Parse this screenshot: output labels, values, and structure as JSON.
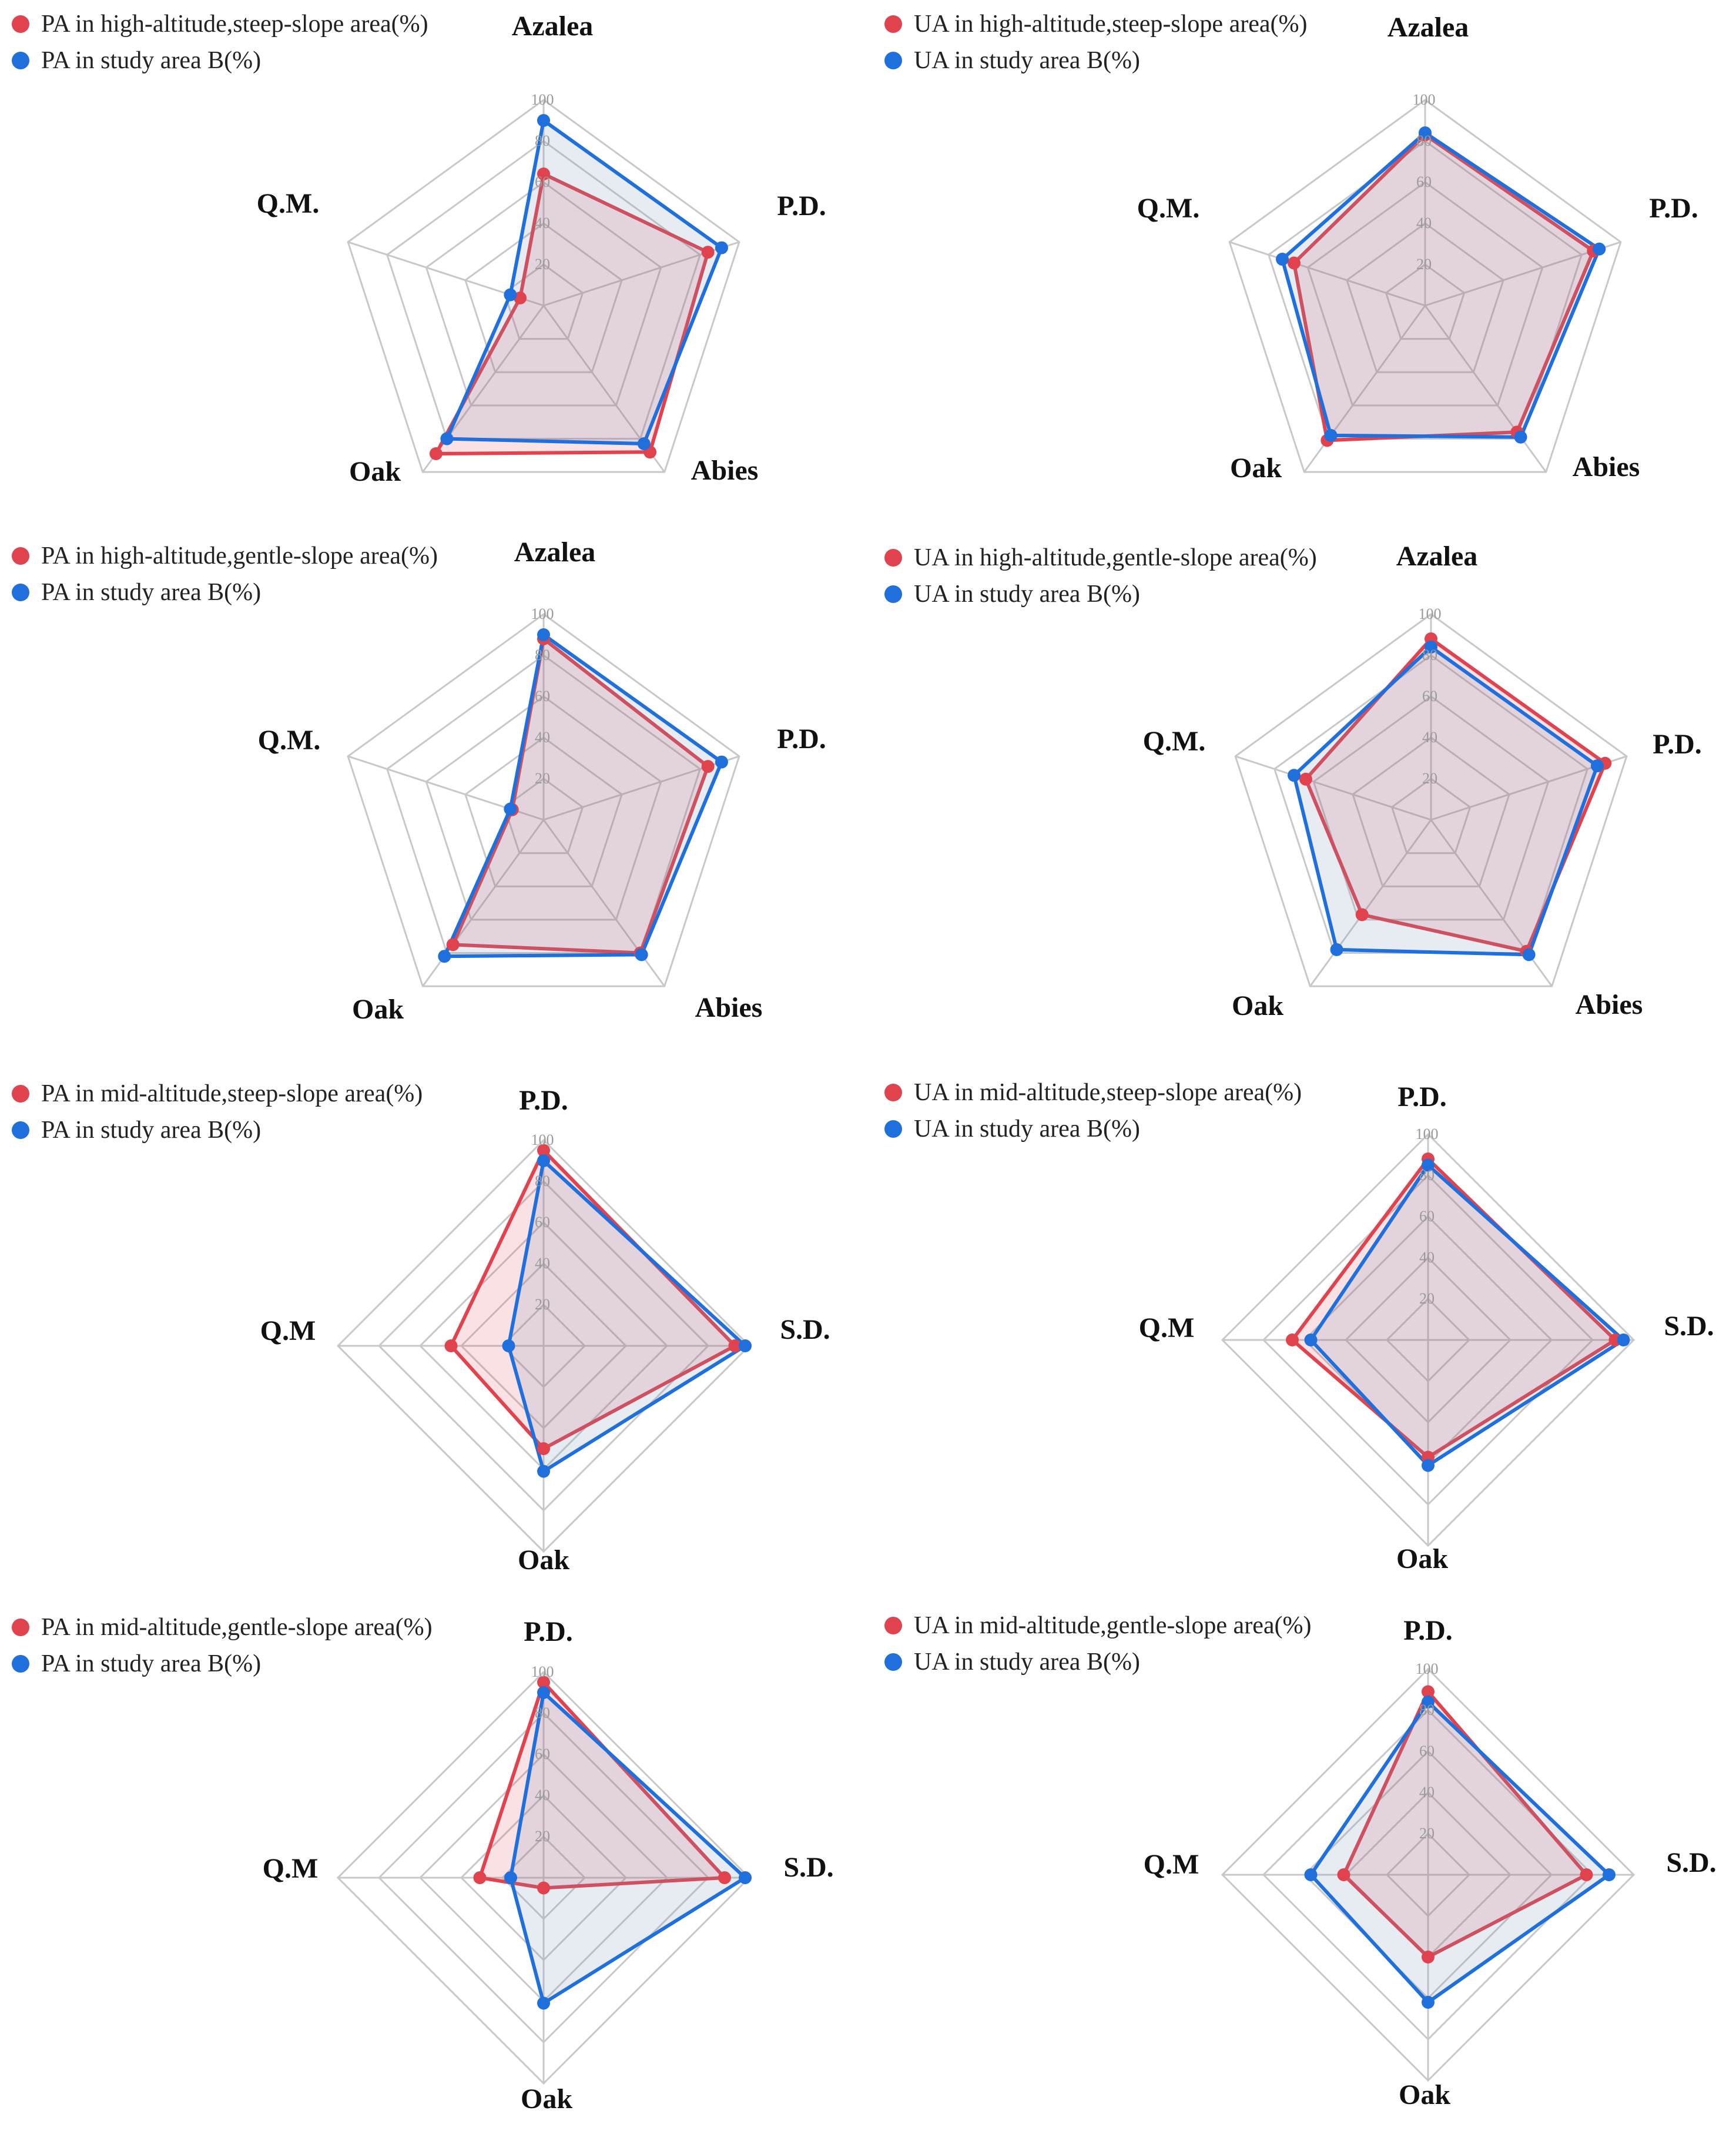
{
  "colors": {
    "red": "#e0434e",
    "blue": "#1f6fdc",
    "grid": "#c8c8c8",
    "tick": "#9a9a9a"
  },
  "chart_data": [
    {
      "type": "radar",
      "title": "",
      "rlim": [
        0,
        100
      ],
      "ticks": [
        "20",
        "40",
        "60",
        "80",
        "100"
      ],
      "axes": [
        "Azalea",
        "P.D.",
        "Abies",
        "Oak",
        "Q.M."
      ],
      "series": [
        {
          "name": "PA in high-altitude,steep-slope area(%)",
          "color": "red",
          "values": [
            64,
            84,
            88,
            89,
            12
          ]
        },
        {
          "name": "PA in study area B(%)",
          "color": "blue",
          "values": [
            90,
            91,
            83,
            80,
            17
          ]
        }
      ],
      "legend": "top-left"
    },
    {
      "type": "radar",
      "title": "",
      "rlim": [
        0,
        100
      ],
      "ticks": [
        "20",
        "40",
        "60",
        "80",
        "100"
      ],
      "axes": [
        "Azalea",
        "P.D.",
        "Abies",
        "Oak",
        "Q.M."
      ],
      "series": [
        {
          "name": "UA in high-altitude,steep-slope area(%)",
          "color": "red",
          "values": [
            83,
            86,
            76,
            81,
            67
          ]
        },
        {
          "name": "UA in study area B(%)",
          "color": "blue",
          "values": [
            84,
            89,
            79,
            78,
            73
          ]
        }
      ],
      "legend": "top-left"
    },
    {
      "type": "radar",
      "title": "",
      "rlim": [
        0,
        100
      ],
      "ticks": [
        "20",
        "40",
        "60",
        "80",
        "100"
      ],
      "axes": [
        "Azalea",
        "P.D.",
        "Abies",
        "Oak",
        "Q.M."
      ],
      "series": [
        {
          "name": "PA in high-altitude,gentle-slope area(%)",
          "color": "red",
          "values": [
            88,
            84,
            80,
            75,
            16
          ]
        },
        {
          "name": "PA in study area B(%)",
          "color": "blue",
          "values": [
            90,
            91,
            81,
            82,
            17
          ]
        }
      ],
      "legend": "top-left"
    },
    {
      "type": "radar",
      "title": "",
      "rlim": [
        0,
        100
      ],
      "ticks": [
        "20",
        "40",
        "60",
        "80",
        "100"
      ],
      "axes": [
        "Azalea",
        "P.D.",
        "Abies",
        "Oak",
        "Q.M."
      ],
      "series": [
        {
          "name": "UA in high-altitude,gentle-slope area(%)",
          "color": "red",
          "values": [
            88,
            89,
            79,
            57,
            64
          ]
        },
        {
          "name": "UA in study area B(%)",
          "color": "blue",
          "values": [
            84,
            85,
            81,
            78,
            70
          ]
        }
      ],
      "legend": "top-left"
    },
    {
      "type": "radar",
      "title": "",
      "rlim": [
        0,
        100
      ],
      "ticks": [
        "20",
        "40",
        "60",
        "80",
        "100"
      ],
      "axes": [
        "P.D.",
        "S.D.",
        "Oak",
        "Q.M"
      ],
      "series": [
        {
          "name": "PA in mid-altitude,steep-slope area(%)",
          "color": "red",
          "values": [
            95,
            93,
            50,
            45
          ]
        },
        {
          "name": "PA in study area B(%)",
          "color": "blue",
          "values": [
            90,
            98,
            61,
            17
          ]
        }
      ],
      "legend": "top-left"
    },
    {
      "type": "radar",
      "title": "",
      "rlim": [
        0,
        100
      ],
      "ticks": [
        "20",
        "40",
        "60",
        "80",
        "100"
      ],
      "axes": [
        "P.D.",
        "S.D.",
        "Oak",
        "Q.M"
      ],
      "series": [
        {
          "name": "UA in mid-altitude,steep-slope area(%)",
          "color": "red",
          "values": [
            88,
            91,
            57,
            66
          ]
        },
        {
          "name": "UA in study area B(%)",
          "color": "blue",
          "values": [
            85,
            95,
            61,
            57
          ]
        }
      ],
      "legend": "top-left"
    },
    {
      "type": "radar",
      "title": "",
      "rlim": [
        0,
        100
      ],
      "ticks": [
        "20",
        "40",
        "60",
        "80",
        "100"
      ],
      "axes": [
        "P.D.",
        "S.D.",
        "Oak",
        "Q.M"
      ],
      "series": [
        {
          "name": "PA in mid-altitude,gentle-slope area(%)",
          "color": "red",
          "values": [
            95,
            88,
            5,
            31
          ]
        },
        {
          "name": "PA in study area B(%)",
          "color": "blue",
          "values": [
            90,
            98,
            61,
            16
          ]
        }
      ],
      "legend": "top-left"
    },
    {
      "type": "radar",
      "title": "",
      "rlim": [
        0,
        100
      ],
      "ticks": [
        "20",
        "40",
        "60",
        "80",
        "100"
      ],
      "axes": [
        "P.D.",
        "S.D.",
        "Oak",
        "Q.M"
      ],
      "series": [
        {
          "name": "UA in mid-altitude,gentle-slope area(%)",
          "color": "red",
          "values": [
            89,
            77,
            40,
            41
          ]
        },
        {
          "name": "UA in study area B(%)",
          "color": "blue",
          "values": [
            84,
            88,
            62,
            57
          ]
        }
      ],
      "legend": "top-left"
    }
  ]
}
